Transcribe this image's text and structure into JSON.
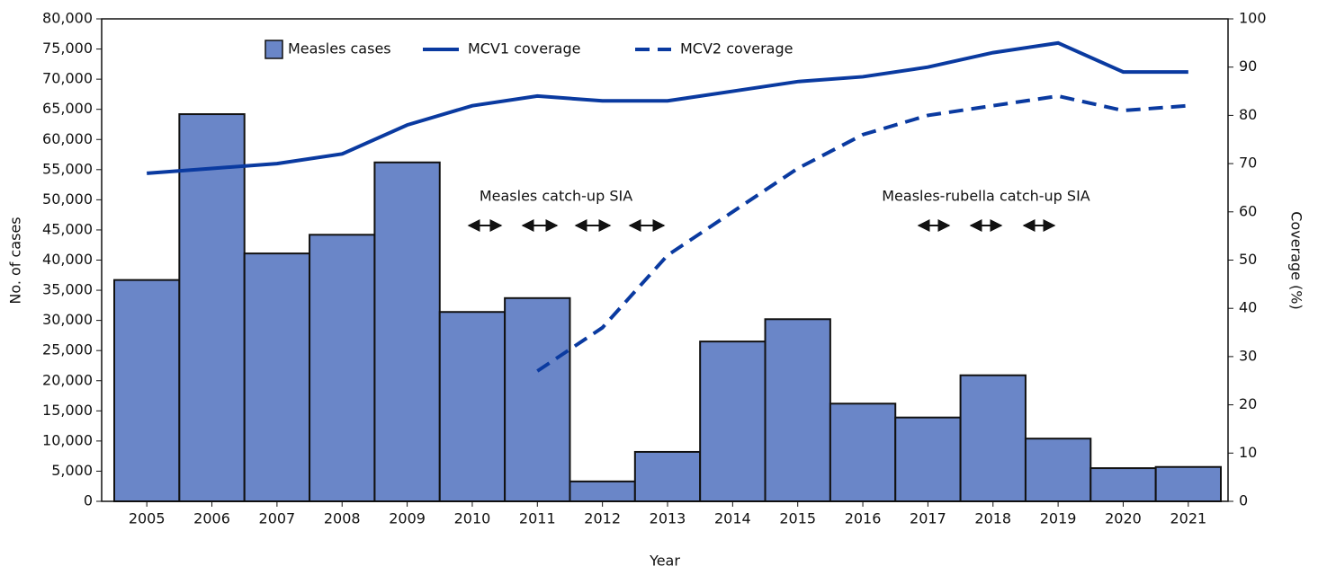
{
  "chart_data": {
    "type": "bar_line",
    "x_label": "Year",
    "y_label": "No. of cases",
    "y2_label": "Coverage (%)",
    "categories": [
      "2005",
      "2006",
      "2007",
      "2008",
      "2009",
      "2010",
      "2011",
      "2012",
      "2013",
      "2014",
      "2015",
      "2016",
      "2017",
      "2018",
      "2019",
      "2020",
      "2021"
    ],
    "series": [
      {
        "name": "Measles cases",
        "type": "bar",
        "color": "#6a86c8",
        "values": [
          36700,
          64200,
          41100,
          44200,
          56200,
          31400,
          33700,
          3300,
          8200,
          26500,
          30200,
          16200,
          13900,
          20900,
          10400,
          5500,
          5700
        ]
      },
      {
        "name": "MCV1 coverage",
        "type": "line",
        "axis": "y2",
        "color": "#0a3aa0",
        "values": [
          68,
          69,
          70,
          72,
          78,
          82,
          84,
          83,
          83,
          85,
          87,
          88,
          90,
          93,
          95,
          89,
          89
        ]
      },
      {
        "name": "MCV2 coverage",
        "type": "line",
        "axis": "y2",
        "dashed": true,
        "color": "#0a3aa0",
        "values": [
          null,
          null,
          null,
          null,
          null,
          null,
          27,
          36,
          51,
          60,
          69,
          76,
          80,
          82,
          84,
          81,
          82
        ]
      }
    ],
    "ylim": [
      0,
      80000
    ],
    "yticks": [
      0,
      {
        "value": 5000,
        "label": "5,000"
      },
      {
        "value": 10000,
        "label": "10,000"
      },
      {
        "value": 15000,
        "label": "15,000"
      },
      {
        "value": 20000,
        "label": "20,000"
      },
      {
        "value": 25000,
        "label": "25,000"
      },
      {
        "value": 30000,
        "label": "30,000"
      },
      {
        "value": 35000,
        "label": "35,000"
      },
      {
        "value": 40000,
        "label": "40,000"
      },
      {
        "value": 45000,
        "label": "45,000"
      },
      {
        "value": 50000,
        "label": "50,000"
      },
      {
        "value": 55000,
        "label": "55,000"
      },
      {
        "value": 60000,
        "label": "60,000"
      },
      {
        "value": 65000,
        "label": "65,000"
      },
      {
        "value": 70000,
        "label": "70,000"
      },
      {
        "value": 75000,
        "label": "75,000"
      },
      {
        "value": 80000,
        "label": "80,000"
      }
    ],
    "y2lim": [
      0,
      100
    ],
    "y2ticks": [
      0,
      10,
      20,
      30,
      40,
      50,
      60,
      70,
      80,
      90,
      100
    ],
    "annotations": [
      "Measles catch-up SIA",
      "Measles-rubella catch-up SIA"
    ]
  }
}
